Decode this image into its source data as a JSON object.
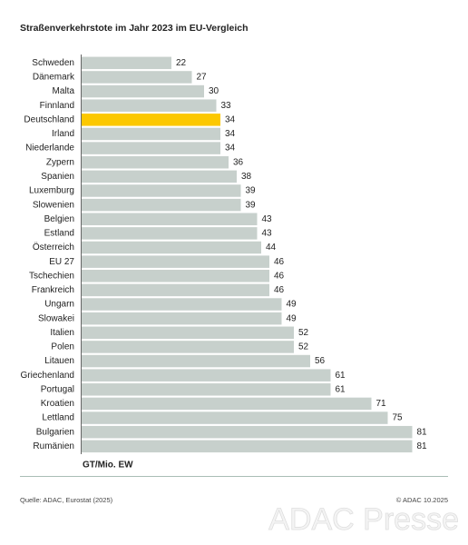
{
  "chart_data": {
    "type": "hbar",
    "title": "Straßenverkehrstote im Jahr 2023 im EU-Vergleich",
    "categories": [
      "Schweden",
      "Dänemark",
      "Malta",
      "Finnland",
      "Deutschland",
      "Irland",
      "Niederlande",
      "Zypern",
      "Spanien",
      "Luxemburg",
      "Slowenien",
      "Belgien",
      "Estland",
      "Österreich",
      "EU 27",
      "Tschechien",
      "Frankreich",
      "Ungarn",
      "Slowakei",
      "Italien",
      "Polen",
      "Litauen",
      "Griechenland",
      "Portugal",
      "Kroatien",
      "Lettland",
      "Bulgarien",
      "Rumänien"
    ],
    "values": [
      22,
      27,
      30,
      33,
      34,
      34,
      34,
      36,
      38,
      39,
      39,
      43,
      43,
      44,
      46,
      46,
      46,
      49,
      49,
      52,
      52,
      56,
      61,
      61,
      71,
      75,
      81,
      81
    ],
    "color": "#c7d0cc",
    "highlight": "Deutschland",
    "highlight_color": "#fcc800",
    "xlabel": "GT/Mio. EW",
    "source": "Quelle: ADAC, Eurostat (2025)",
    "copyright": "© ADAC 10.2025",
    "watermark": "ADAC Presse"
  }
}
